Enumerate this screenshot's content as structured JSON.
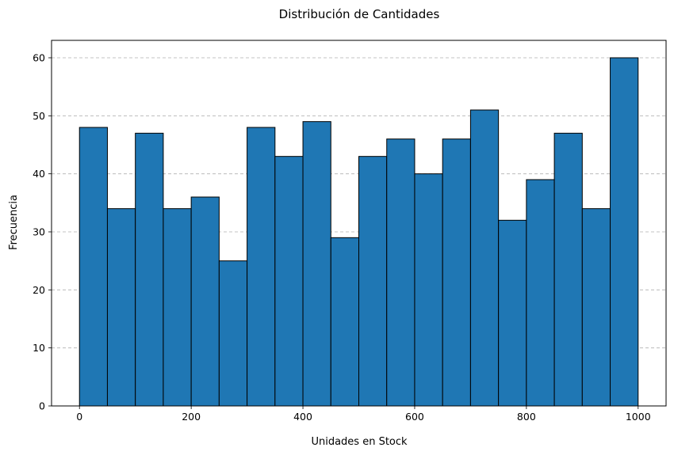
{
  "chart_data": {
    "type": "bar",
    "title": "Distribución de Cantidades",
    "xlabel": "Unidades en Stock",
    "ylabel": "Frecuencia",
    "xlim": [
      -50,
      1050
    ],
    "ylim": [
      0,
      63
    ],
    "xticks": [
      0,
      200,
      400,
      600,
      800,
      1000
    ],
    "yticks": [
      0,
      10,
      20,
      30,
      40,
      50,
      60
    ],
    "grid": "y-dashed",
    "bar_color": "#1f77b4",
    "edge_color": "#000000",
    "bins": [
      {
        "x0": 0,
        "x1": 50,
        "count": 48
      },
      {
        "x0": 50,
        "x1": 100,
        "count": 34
      },
      {
        "x0": 100,
        "x1": 150,
        "count": 47
      },
      {
        "x0": 150,
        "x1": 200,
        "count": 34
      },
      {
        "x0": 200,
        "x1": 250,
        "count": 36
      },
      {
        "x0": 250,
        "x1": 300,
        "count": 25
      },
      {
        "x0": 300,
        "x1": 350,
        "count": 48
      },
      {
        "x0": 350,
        "x1": 400,
        "count": 43
      },
      {
        "x0": 400,
        "x1": 450,
        "count": 49
      },
      {
        "x0": 450,
        "x1": 500,
        "count": 29
      },
      {
        "x0": 500,
        "x1": 550,
        "count": 43
      },
      {
        "x0": 550,
        "x1": 600,
        "count": 46
      },
      {
        "x0": 600,
        "x1": 650,
        "count": 40
      },
      {
        "x0": 650,
        "x1": 700,
        "count": 46
      },
      {
        "x0": 700,
        "x1": 750,
        "count": 51
      },
      {
        "x0": 750,
        "x1": 800,
        "count": 32
      },
      {
        "x0": 800,
        "x1": 850,
        "count": 39
      },
      {
        "x0": 850,
        "x1": 900,
        "count": 47
      },
      {
        "x0": 900,
        "x1": 950,
        "count": 34
      },
      {
        "x0": 950,
        "x1": 1000,
        "count": 60
      }
    ]
  }
}
